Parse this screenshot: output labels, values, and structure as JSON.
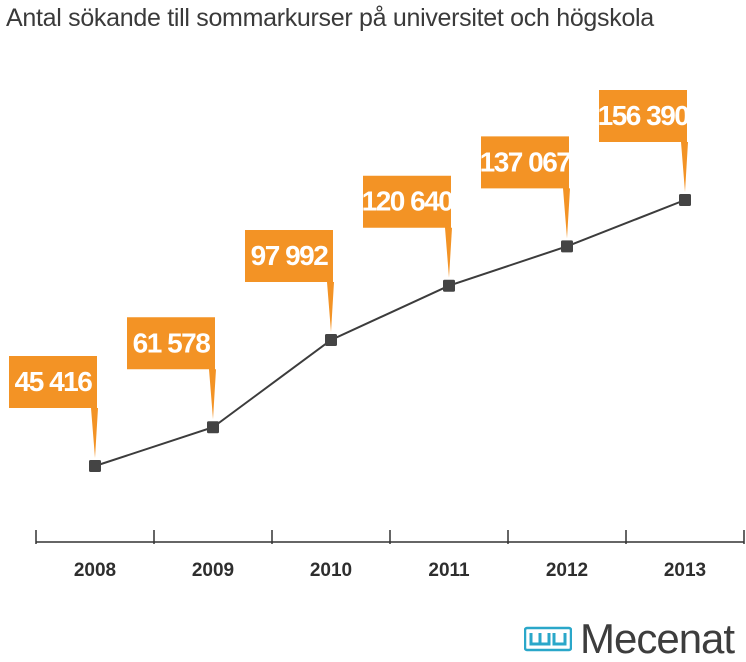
{
  "chart_data": {
    "type": "line",
    "title": "Antal sökande till sommarkurser på universitet och högskola",
    "categories": [
      "2008",
      "2009",
      "2010",
      "2011",
      "2012",
      "2013"
    ],
    "values": [
      45416,
      61578,
      97992,
      120640,
      137067,
      156390
    ],
    "data_labels": [
      "45 416",
      "61 578",
      "97 992",
      "120 640",
      "137 067",
      "156 390"
    ],
    "ylim": [
      30000,
      165000
    ],
    "grid": false,
    "legend": "none"
  },
  "brand": {
    "name": "Mecenat",
    "logo_icon": "mecenat-logo-icon"
  },
  "colors": {
    "label_bg": "#f39325",
    "label_text": "#ffffff",
    "line": "#3c3c3c",
    "marker": "#444444",
    "axis": "#333333",
    "logo": "#2aa7c9"
  }
}
